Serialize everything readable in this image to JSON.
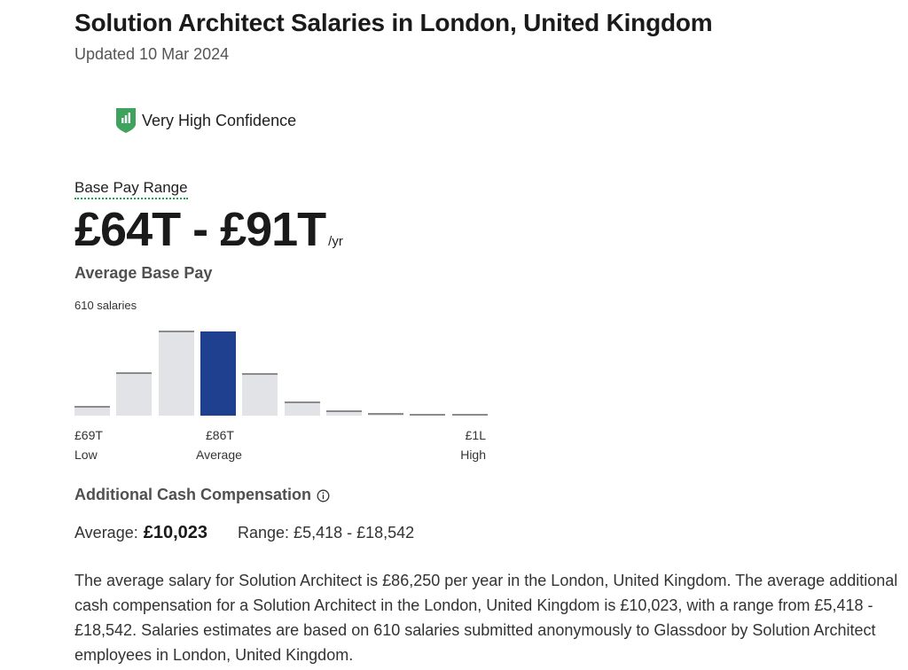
{
  "header": {
    "title": "Solution Architect Salaries in London, United Kingdom",
    "updated": "Updated 10 Mar 2024"
  },
  "confidence": {
    "label": "Very High Confidence",
    "icon": "confidence-shield-icon",
    "color": "#3da35d"
  },
  "base_pay": {
    "label": "Base Pay Range",
    "range": "£64T - £91T",
    "unit": "/yr"
  },
  "average_base_pay": {
    "title": "Average Base Pay",
    "salary_count": "610 salaries",
    "accent_color": "#1f3f8f",
    "bar_color": "#e2e3e6",
    "axis": {
      "low_value": "£69T",
      "low_label": "Low",
      "avg_value": "£86T",
      "avg_label": "Average",
      "high_value": "£1L",
      "high_label": "High"
    }
  },
  "chart_data": {
    "type": "bar",
    "categories": [
      "1",
      "2",
      "3",
      "4",
      "5",
      "6",
      "7",
      "8",
      "9",
      "10"
    ],
    "values": [
      11,
      47,
      92,
      91,
      46,
      15,
      6,
      3,
      2,
      1
    ],
    "highlight_index": 3,
    "ylim": [
      0,
      100
    ],
    "grid": false
  },
  "additional_cash": {
    "title": "Additional Cash Compensation",
    "average_label": "Average:",
    "average_value": "£10,023",
    "range": "Range: £5,418 - £18,542"
  },
  "summary": "The average salary for Solution Architect is £86,250 per year in the London, United Kingdom. The average additional cash compensation for a Solution Architect in the London, United Kingdom is £10,023, with a range from £5,418 - £18,542. Salaries estimates are based on 610 salaries submitted anonymously to Glassdoor by Solution Architect employees in London, United Kingdom."
}
